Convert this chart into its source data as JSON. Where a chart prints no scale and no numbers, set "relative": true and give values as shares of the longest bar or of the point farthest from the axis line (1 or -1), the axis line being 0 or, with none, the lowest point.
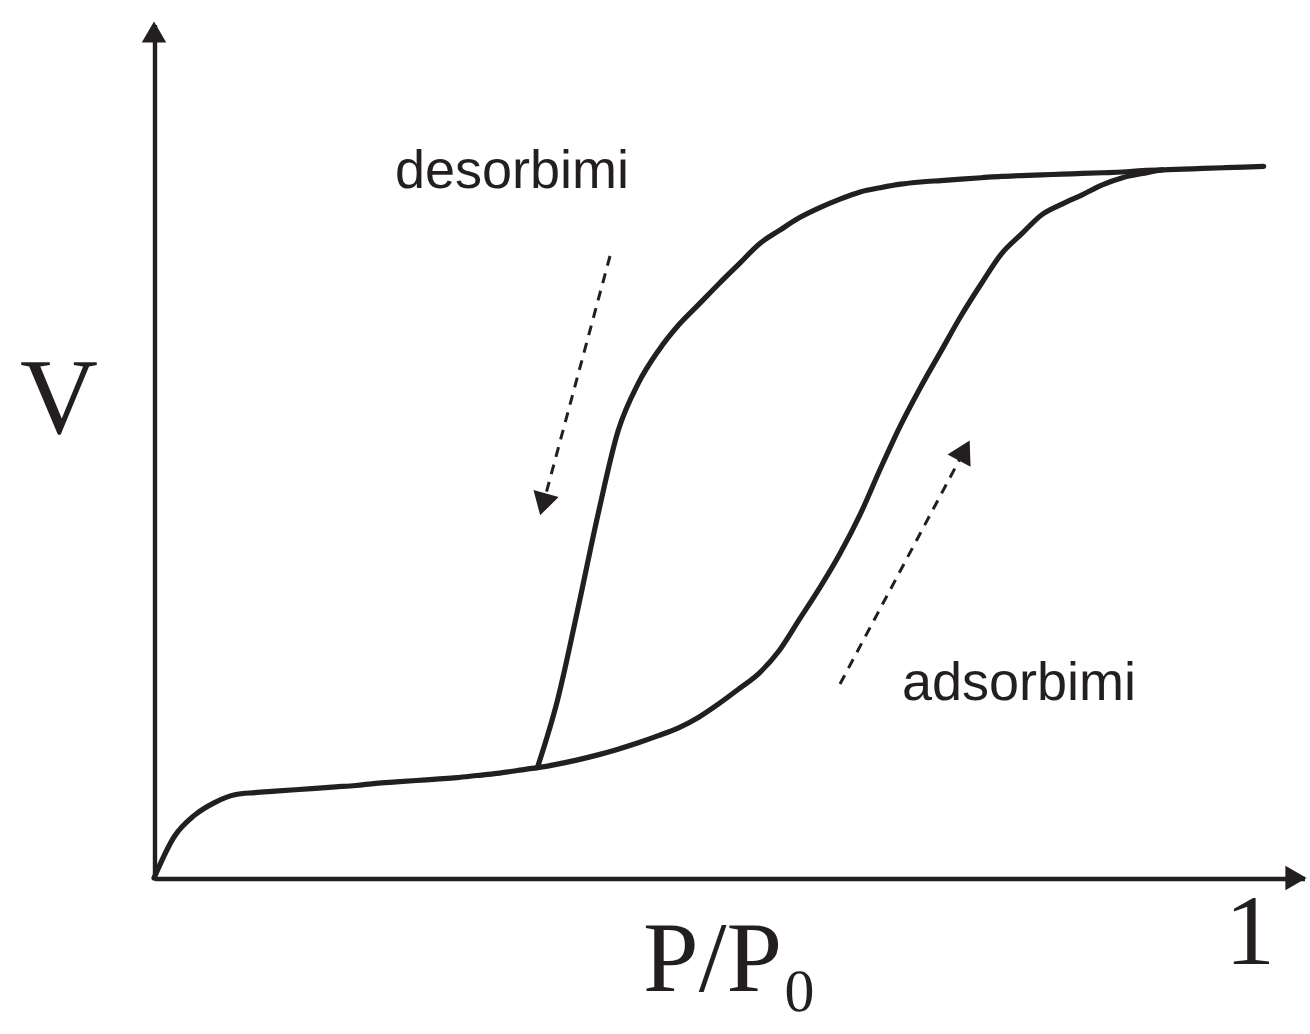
{
  "chart_data": {
    "type": "line",
    "relative": true,
    "xlabel": "P/P₀",
    "ylabel": "V",
    "categories": [
      null,
      null,
      null,
      null,
      null,
      null,
      null,
      null,
      null,
      null,
      null,
      null,
      null,
      null,
      null,
      null,
      null,
      null,
      null,
      null,
      null,
      null,
      null,
      null,
      null,
      null,
      null,
      null,
      null,
      null,
      null,
      null,
      null,
      null,
      null,
      null,
      null,
      null,
      null,
      null,
      null,
      null,
      null,
      null,
      null,
      null,
      null,
      null,
      null,
      null,
      null,
      null,
      null,
      null,
      null,
      null
    ],
    "series": [
      {
        "color": "#231f20",
        "values": [
          0,
          0.058,
          0.088,
          0.106,
          0.117,
          0.12,
          0.122,
          0.124,
          0.126,
          0.128,
          0.13,
          0.133,
          0.135,
          0.137,
          0.139,
          0.141,
          0.144,
          0.147,
          0.151,
          0.155,
          0.16,
          0.166,
          0.173,
          0.181,
          0.19,
          0.2,
          0.211,
          0.226,
          0.245,
          0.266,
          0.288,
          0.32,
          0.364,
          0.408,
          0.456,
          0.511,
          0.575,
          0.636,
          0.69,
          0.74,
          0.79,
          0.835,
          0.877,
          0.905,
          0.932,
          0.947,
          0.96,
          0.974,
          0.984,
          0.99,
          0.995,
          0.996,
          0.997,
          0.998,
          0.999,
          1
        ]
      },
      {
        "color": "#231f20",
        "values": [
          null,
          null,
          null,
          null,
          null,
          null,
          null,
          null,
          null,
          null,
          null,
          null,
          null,
          null,
          null,
          null,
          null,
          null,
          null,
          0.155,
          0.25,
          0.377,
          0.51,
          0.628,
          0.695,
          0.741,
          0.777,
          0.806,
          0.835,
          0.863,
          0.891,
          0.91,
          0.928,
          0.942,
          0.954,
          0.964,
          0.97,
          0.975,
          0.978,
          0.98,
          0.982,
          0.984,
          0.986,
          0.987,
          0.988,
          0.989,
          0.99,
          0.991,
          0.992,
          0.994,
          0.995,
          null,
          null,
          null,
          null,
          null
        ]
      }
    ],
    "annotations": [
      "desorbimi",
      "adsorbimi",
      "1"
    ]
  }
}
